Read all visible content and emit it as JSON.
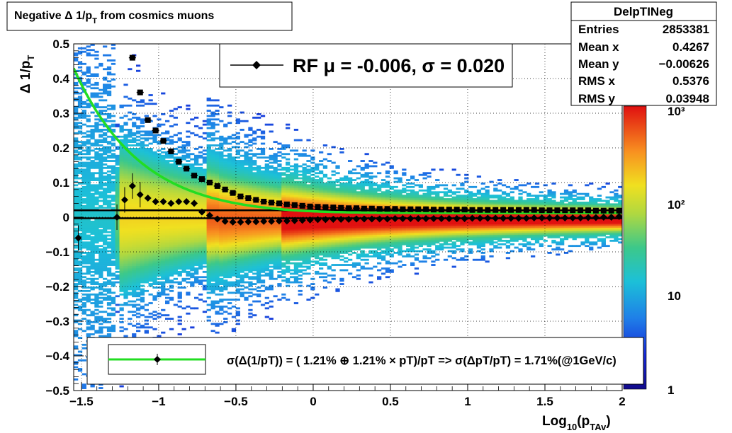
{
  "title": {
    "main": "Negative Δ 1/p",
    "sub": "T",
    "rest": " from cosmics muons"
  },
  "stats": {
    "name": "DelpTINeg",
    "rows": [
      {
        "label": "Entries",
        "value": "2853381"
      },
      {
        "label": "Mean x",
        "value": "0.4267"
      },
      {
        "label": "Mean y",
        "value": "−0.00626"
      },
      {
        "label": "RMS x",
        "value": "0.5376"
      },
      {
        "label": "RMS y",
        "value": "0.03948"
      }
    ]
  },
  "legend_top": {
    "text": "RF μ = -0.006, σ =   0.020"
  },
  "legend_bottom": {
    "text": "σ(Δ(1/pT)) = ( 1.21% ⊕  1.21% × pT)/pT => σ(ΔpT/pT) =  1.71%(@1GeV/c)"
  },
  "colors": {
    "fit_curve": "#22dd22",
    "markers": "#000000",
    "frame": "#000000"
  },
  "chart_data": {
    "type": "heatmap",
    "xlabel": {
      "main": "Log",
      "sub1": "10",
      "mid": "(p",
      "sub2": "TAv",
      "end": ")"
    },
    "ylabel": {
      "main": "Δ 1/p",
      "sub": "T"
    },
    "xlim": [
      -1.55,
      2.0
    ],
    "ylim": [
      -0.5,
      0.5
    ],
    "xticks": [
      -1.5,
      -1,
      -0.5,
      0,
      0.5,
      1,
      1.5,
      2
    ],
    "xtick_labels": [
      "−1.5",
      "−1",
      "−0.5",
      "0",
      "0.5",
      "1",
      "1.5",
      "2"
    ],
    "yticks": [
      -0.5,
      -0.4,
      -0.3,
      -0.2,
      -0.1,
      0,
      0.1,
      0.2,
      0.3,
      0.4,
      0.5
    ],
    "ytick_labels": [
      "−0.5",
      "−0.4",
      "−0.3",
      "−0.2",
      "−0.1",
      "0",
      "0.1",
      "0.2",
      "0.3",
      "0.4",
      "0.5"
    ],
    "grid": true,
    "colorbar": {
      "scale": "log",
      "labels": [
        "1",
        "10",
        "10²",
        "10³"
      ]
    },
    "hlines": [
      0.02,
      -0.003
    ],
    "mean_points": [
      {
        "x": -1.52,
        "y": -0.06
      },
      {
        "x": -1.27,
        "y": 0.0
      },
      {
        "x": -1.22,
        "y": 0.05
      },
      {
        "x": -1.17,
        "y": 0.09
      },
      {
        "x": -1.12,
        "y": 0.065
      },
      {
        "x": -1.07,
        "y": 0.055
      },
      {
        "x": -1.02,
        "y": 0.045
      },
      {
        "x": -0.97,
        "y": 0.045
      },
      {
        "x": -0.92,
        "y": 0.04
      },
      {
        "x": -0.87,
        "y": 0.045
      },
      {
        "x": -0.82,
        "y": 0.045
      },
      {
        "x": -0.77,
        "y": 0.04
      },
      {
        "x": -0.72,
        "y": 0.015
      },
      {
        "x": -0.67,
        "y": 0.005
      },
      {
        "x": -0.62,
        "y": -0.005
      },
      {
        "x": -0.57,
        "y": -0.012
      },
      {
        "x": -0.52,
        "y": -0.014
      },
      {
        "x": -0.47,
        "y": -0.014
      },
      {
        "x": -0.42,
        "y": -0.013
      },
      {
        "x": -0.37,
        "y": -0.013
      },
      {
        "x": -0.32,
        "y": -0.012
      },
      {
        "x": -0.27,
        "y": -0.012
      },
      {
        "x": -0.22,
        "y": -0.011
      },
      {
        "x": -0.17,
        "y": -0.011
      },
      {
        "x": -0.12,
        "y": -0.01
      },
      {
        "x": -0.07,
        "y": -0.009
      },
      {
        "x": -0.02,
        "y": -0.008
      },
      {
        "x": 0.03,
        "y": -0.007
      },
      {
        "x": 0.08,
        "y": -0.007
      },
      {
        "x": 0.13,
        "y": -0.006
      },
      {
        "x": 0.18,
        "y": -0.006
      },
      {
        "x": 0.23,
        "y": -0.006
      },
      {
        "x": 0.28,
        "y": -0.005
      },
      {
        "x": 0.33,
        "y": -0.005
      },
      {
        "x": 0.38,
        "y": -0.005
      },
      {
        "x": 0.43,
        "y": -0.005
      },
      {
        "x": 0.48,
        "y": -0.005
      },
      {
        "x": 0.53,
        "y": -0.004
      },
      {
        "x": 0.58,
        "y": -0.004
      },
      {
        "x": 0.63,
        "y": -0.004
      },
      {
        "x": 0.68,
        "y": -0.004
      },
      {
        "x": 0.73,
        "y": -0.004
      },
      {
        "x": 0.78,
        "y": -0.004
      },
      {
        "x": 0.83,
        "y": -0.004
      },
      {
        "x": 0.88,
        "y": -0.004
      },
      {
        "x": 0.93,
        "y": -0.004
      },
      {
        "x": 0.98,
        "y": -0.004
      },
      {
        "x": 1.03,
        "y": -0.003
      },
      {
        "x": 1.08,
        "y": -0.003
      },
      {
        "x": 1.13,
        "y": -0.003
      },
      {
        "x": 1.18,
        "y": -0.003
      },
      {
        "x": 1.23,
        "y": -0.003
      },
      {
        "x": 1.28,
        "y": -0.003
      },
      {
        "x": 1.33,
        "y": -0.003
      },
      {
        "x": 1.38,
        "y": -0.003
      },
      {
        "x": 1.43,
        "y": -0.002
      },
      {
        "x": 1.48,
        "y": -0.002
      },
      {
        "x": 1.53,
        "y": -0.002
      },
      {
        "x": 1.58,
        "y": -0.002
      },
      {
        "x": 1.63,
        "y": -0.002
      },
      {
        "x": 1.68,
        "y": -0.002
      },
      {
        "x": 1.73,
        "y": -0.002
      },
      {
        "x": 1.78,
        "y": -0.001
      },
      {
        "x": 1.83,
        "y": -0.001
      },
      {
        "x": 1.88,
        "y": 0.0
      },
      {
        "x": 1.93,
        "y": 0.0
      },
      {
        "x": 1.98,
        "y": 0.002
      }
    ],
    "rms_points": [
      {
        "x": -1.17,
        "y": 0.46
      },
      {
        "x": -1.12,
        "y": 0.36
      },
      {
        "x": -1.07,
        "y": 0.28
      },
      {
        "x": -1.02,
        "y": 0.25
      },
      {
        "x": -0.97,
        "y": 0.22
      },
      {
        "x": -0.92,
        "y": 0.19
      },
      {
        "x": -0.87,
        "y": 0.16
      },
      {
        "x": -0.82,
        "y": 0.14
      },
      {
        "x": -0.77,
        "y": 0.12
      },
      {
        "x": -0.72,
        "y": 0.11
      },
      {
        "x": -0.67,
        "y": 0.1
      },
      {
        "x": -0.62,
        "y": 0.09
      },
      {
        "x": -0.57,
        "y": 0.08
      },
      {
        "x": -0.52,
        "y": 0.07
      },
      {
        "x": -0.47,
        "y": 0.06
      },
      {
        "x": -0.42,
        "y": 0.055
      },
      {
        "x": -0.37,
        "y": 0.05
      },
      {
        "x": -0.32,
        "y": 0.045
      },
      {
        "x": -0.27,
        "y": 0.042
      },
      {
        "x": -0.22,
        "y": 0.04
      },
      {
        "x": -0.17,
        "y": 0.037
      },
      {
        "x": -0.12,
        "y": 0.035
      },
      {
        "x": -0.07,
        "y": 0.033
      },
      {
        "x": -0.02,
        "y": 0.031
      },
      {
        "x": 0.03,
        "y": 0.03
      },
      {
        "x": 0.08,
        "y": 0.029
      },
      {
        "x": 0.13,
        "y": 0.028
      },
      {
        "x": 0.18,
        "y": 0.027
      },
      {
        "x": 0.23,
        "y": 0.026
      },
      {
        "x": 0.28,
        "y": 0.026
      },
      {
        "x": 0.33,
        "y": 0.025
      },
      {
        "x": 0.38,
        "y": 0.025
      },
      {
        "x": 0.43,
        "y": 0.024
      },
      {
        "x": 0.48,
        "y": 0.024
      },
      {
        "x": 0.53,
        "y": 0.024
      },
      {
        "x": 0.58,
        "y": 0.023
      },
      {
        "x": 0.63,
        "y": 0.023
      },
      {
        "x": 0.68,
        "y": 0.023
      },
      {
        "x": 0.73,
        "y": 0.023
      },
      {
        "x": 0.78,
        "y": 0.022
      },
      {
        "x": 0.83,
        "y": 0.022
      },
      {
        "x": 0.88,
        "y": 0.022
      },
      {
        "x": 0.93,
        "y": 0.022
      },
      {
        "x": 0.98,
        "y": 0.022
      },
      {
        "x": 1.03,
        "y": 0.021
      },
      {
        "x": 1.08,
        "y": 0.021
      },
      {
        "x": 1.13,
        "y": 0.021
      },
      {
        "x": 1.18,
        "y": 0.021
      },
      {
        "x": 1.23,
        "y": 0.021
      },
      {
        "x": 1.28,
        "y": 0.021
      },
      {
        "x": 1.33,
        "y": 0.021
      },
      {
        "x": 1.38,
        "y": 0.021
      },
      {
        "x": 1.43,
        "y": 0.021
      },
      {
        "x": 1.48,
        "y": 0.02
      },
      {
        "x": 1.53,
        "y": 0.02
      },
      {
        "x": 1.58,
        "y": 0.02
      },
      {
        "x": 1.63,
        "y": 0.02
      },
      {
        "x": 1.68,
        "y": 0.02
      },
      {
        "x": 1.73,
        "y": 0.02
      },
      {
        "x": 1.78,
        "y": 0.02
      },
      {
        "x": 1.83,
        "y": 0.019
      },
      {
        "x": 1.88,
        "y": 0.019
      },
      {
        "x": 1.93,
        "y": 0.019
      },
      {
        "x": 1.98,
        "y": 0.019
      }
    ],
    "fit_curve": {
      "a_percent": 1.21,
      "b_percent": 1.21
    }
  }
}
